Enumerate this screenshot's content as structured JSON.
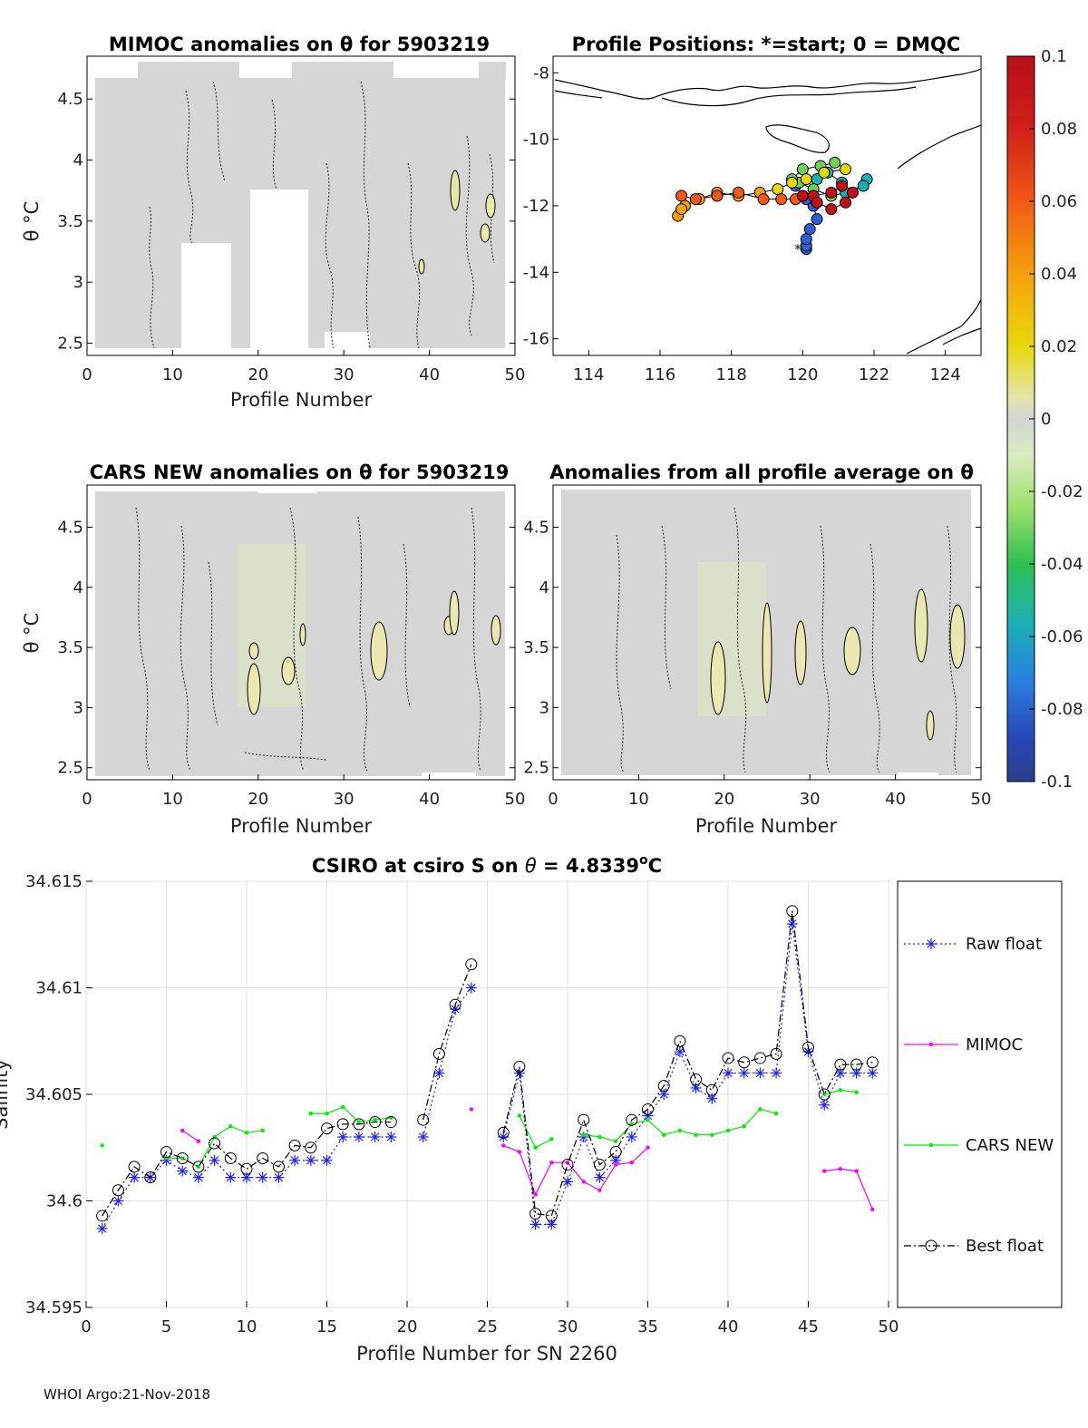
{
  "footer": "WHOI Argo:21-Nov-2018",
  "colorbar": {
    "ticks": [
      "0.1",
      "0.08",
      "0.06",
      "0.04",
      "0.02",
      "0",
      "-0.02",
      "-0.04",
      "-0.06",
      "-0.08",
      "-0.1"
    ],
    "range": [
      -0.1,
      0.1
    ]
  },
  "chart_data": [
    {
      "id": "mimoc",
      "type": "heatmap",
      "title": "MIMOC anomalies on θ  for 5903219",
      "xlabel": "Profile Number",
      "ylabel": "θ °C",
      "xlim": [
        0,
        50
      ],
      "ylim": [
        2.4,
        4.85
      ],
      "xticks": [
        "0",
        "10",
        "20",
        "30",
        "40",
        "50"
      ],
      "yticks": [
        "2.5",
        "3",
        "3.5",
        "4",
        "4.5"
      ],
      "missing_blocks": [
        {
          "x": [
            11,
            17
          ],
          "y": [
            2.4,
            3.33
          ]
        },
        {
          "x": [
            19,
            26
          ],
          "y": [
            2.4,
            3.78
          ]
        }
      ],
      "note": "near-zero anomalies (gray) with dotted zero contours and small positive (yellow) patches"
    },
    {
      "id": "positions",
      "type": "scatter",
      "title": "Profile Positions: *=start; 0 = DMQC",
      "xlim": [
        113,
        125
      ],
      "ylim": [
        -16.5,
        -7.5
      ],
      "xticks": [
        "114",
        "116",
        "118",
        "120",
        "122",
        "124"
      ],
      "yticks": [
        "-8",
        "-10",
        "-12",
        "-14",
        "-16"
      ],
      "lon": [
        120.1,
        120.1,
        120.1,
        120.2,
        120.4,
        120.3,
        120.1,
        119.8,
        120.4,
        120.7,
        121.1,
        121.4,
        121.8,
        121.7,
        121.2,
        120.8,
        120.3,
        119.9,
        119.7,
        120.0,
        120.5,
        120.9,
        121.2,
        120.6,
        120.1,
        119.7,
        119.3,
        118.8,
        118.2,
        117.6,
        117.1,
        116.7,
        116.5,
        116.6,
        116.6,
        117.0,
        117.6,
        118.2,
        118.9,
        119.4,
        119.8,
        120.3,
        120.8,
        121.1,
        121.4,
        121.2,
        120.8,
        120.4,
        120.0
      ],
      "lat": [
        -13.3,
        -13.2,
        -13.0,
        -12.7,
        -12.4,
        -12.0,
        -11.8,
        -11.4,
        -11.2,
        -11.0,
        -11.3,
        -11.6,
        -11.2,
        -11.4,
        -11.6,
        -11.7,
        -11.5,
        -11.3,
        -11.2,
        -10.9,
        -10.8,
        -10.7,
        -10.9,
        -11.0,
        -11.2,
        -11.3,
        -11.5,
        -11.6,
        -11.7,
        -11.6,
        -11.8,
        -12.0,
        -12.3,
        -12.1,
        -11.7,
        -11.8,
        -11.7,
        -11.6,
        -11.8,
        -11.8,
        -11.8,
        -11.7,
        -11.6,
        -11.4,
        -11.6,
        -11.9,
        -12.1,
        -11.9,
        -11.7
      ],
      "marker_note": "color = profile order (blue start to red end); asterisk marks start"
    },
    {
      "id": "cars",
      "type": "heatmap",
      "title": "CARS NEW anomalies on θ for 5903219",
      "xlabel": "Profile Number",
      "ylabel": "θ °C",
      "xlim": [
        0,
        50
      ],
      "ylim": [
        2.4,
        4.85
      ],
      "xticks": [
        "0",
        "10",
        "20",
        "30",
        "40",
        "50"
      ],
      "yticks": [
        "2.5",
        "3",
        "3.5",
        "4",
        "4.5"
      ],
      "note": "near-zero anomalies with positive patches near profiles 19, 25, 35, 44"
    },
    {
      "id": "allavg",
      "type": "heatmap",
      "title": "Anomalies from all profile average on θ",
      "xlabel": "Profile Number",
      "xlim": [
        0,
        50
      ],
      "ylim": [
        2.4,
        4.85
      ],
      "xticks": [
        "0",
        "10",
        "20",
        "30",
        "40",
        "50"
      ],
      "yticks": [
        "2.5",
        "3",
        "3.5",
        "4",
        "4.5"
      ],
      "note": "near-zero anomalies with positive patches near profiles 19, 25, 30, 35, 44, 48"
    },
    {
      "id": "salinity",
      "type": "line",
      "title_prefix": "CSIRO at csiro S on ",
      "title_theta": "θ",
      "title_value": " = 4.8339",
      "title_sup": "o",
      "title_unit": "C",
      "xlabel": "Profile Number for SN 2260",
      "ylabel": "Salinity",
      "xlim": [
        0,
        50
      ],
      "ylim": [
        34.595,
        34.615
      ],
      "xticks": [
        "0",
        "5",
        "10",
        "15",
        "20",
        "25",
        "30",
        "35",
        "40",
        "45",
        "50"
      ],
      "yticks": [
        "34.595",
        "34.6",
        "34.605",
        "34.61",
        "34.615"
      ],
      "x": [
        1,
        2,
        3,
        4,
        5,
        6,
        7,
        8,
        9,
        10,
        11,
        12,
        13,
        14,
        15,
        16,
        17,
        18,
        19,
        20,
        21,
        22,
        23,
        24,
        25,
        26,
        27,
        28,
        29,
        30,
        31,
        32,
        33,
        34,
        35,
        36,
        37,
        38,
        39,
        40,
        41,
        42,
        43,
        44,
        45,
        46,
        47,
        48,
        49
      ],
      "series": [
        {
          "name": "Raw float",
          "color": "#1f1fff",
          "values": [
            34.5987,
            34.6,
            34.6011,
            34.6011,
            34.6019,
            34.6014,
            34.6011,
            34.6019,
            34.6011,
            34.6011,
            34.6011,
            34.6011,
            34.6019,
            34.6019,
            34.6019,
            34.603,
            34.603,
            34.603,
            34.603,
            null,
            34.603,
            34.606,
            34.609,
            34.61,
            null,
            34.603,
            34.606,
            34.5989,
            34.5989,
            34.6009,
            34.603,
            34.6011,
            34.6019,
            34.603,
            34.604,
            34.605,
            34.607,
            34.6053,
            34.6048,
            34.606,
            34.606,
            34.606,
            34.606,
            34.613,
            34.607,
            34.6045,
            34.606,
            34.606,
            34.606
          ]
        },
        {
          "name": "MIMOC",
          "color": "#ff00ff",
          "values": [
            null,
            null,
            null,
            null,
            null,
            34.6033,
            34.6028,
            null,
            null,
            null,
            null,
            null,
            null,
            null,
            null,
            null,
            null,
            null,
            null,
            null,
            null,
            null,
            null,
            34.6043,
            null,
            34.6026,
            34.6023,
            34.6003,
            34.6018,
            34.6018,
            34.6009,
            34.6005,
            34.6017,
            34.6018,
            34.6025,
            null,
            null,
            null,
            null,
            null,
            null,
            null,
            null,
            null,
            null,
            34.6014,
            34.6015,
            34.6014,
            34.5996
          ]
        },
        {
          "name": "CARS NEW",
          "color": "#00ee00",
          "values": [
            34.6026,
            null,
            null,
            null,
            34.602,
            34.602,
            34.6016,
            34.603,
            34.6035,
            34.6032,
            34.6033,
            null,
            null,
            34.6041,
            34.6041,
            34.6044,
            34.6037,
            34.6038,
            34.6039,
            null,
            null,
            null,
            null,
            null,
            null,
            null,
            34.604,
            34.6025,
            34.6029,
            null,
            34.6031,
            34.603,
            34.6028,
            34.6036,
            34.6038,
            34.6031,
            34.6033,
            34.6031,
            34.6031,
            34.6033,
            34.6035,
            34.6043,
            34.6041,
            null,
            null,
            34.605,
            34.6052,
            34.6051,
            null
          ]
        },
        {
          "name": "Best float",
          "color": "#000000",
          "values": [
            34.5993,
            34.6005,
            34.6016,
            34.6011,
            34.6023,
            34.602,
            34.6016,
            34.6027,
            34.602,
            34.6015,
            34.602,
            34.6016,
            34.6026,
            34.6025,
            34.6034,
            34.6036,
            34.6036,
            34.6037,
            34.6037,
            null,
            34.6038,
            34.6069,
            34.6092,
            34.6111,
            null,
            34.6032,
            34.6063,
            34.5994,
            34.5993,
            34.6017,
            34.6038,
            34.6017,
            34.6023,
            34.6038,
            34.6043,
            34.6054,
            34.6075,
            34.6057,
            34.6052,
            34.6067,
            34.6065,
            34.6067,
            34.6069,
            34.6136,
            34.6072,
            34.605,
            34.6064,
            34.6064,
            34.6065
          ]
        }
      ]
    }
  ]
}
